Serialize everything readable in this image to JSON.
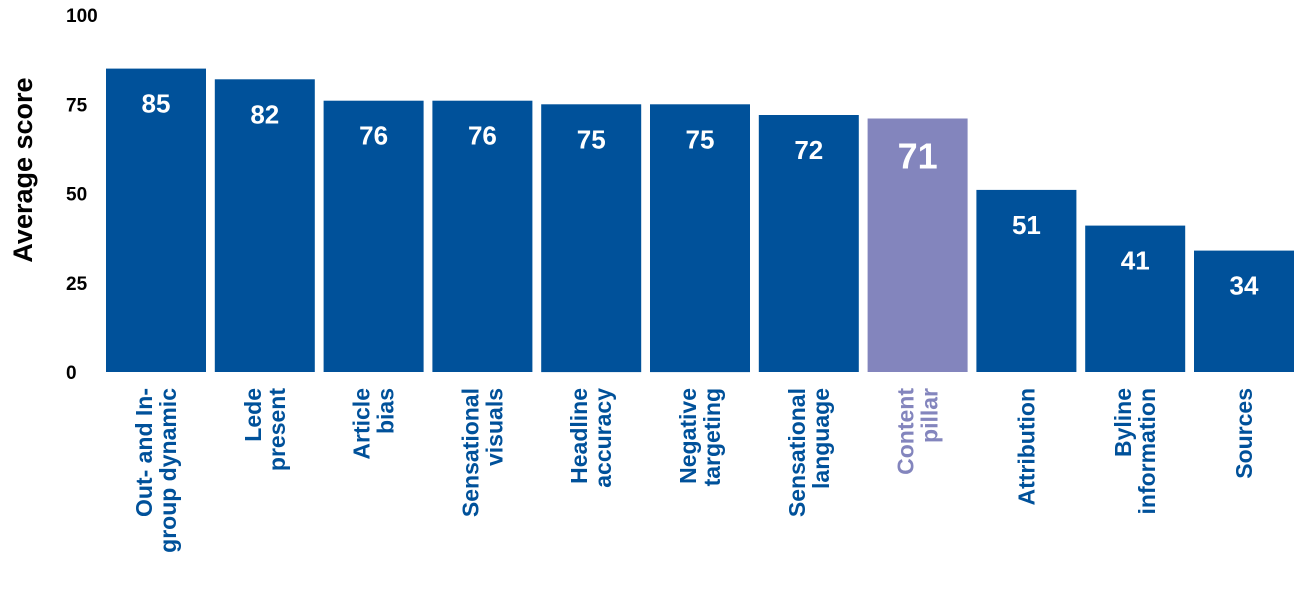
{
  "chart_data": {
    "type": "bar",
    "title": "",
    "xlabel": "",
    "ylabel": "Average score",
    "ylim": [
      0,
      100
    ],
    "yticks": [
      0,
      25,
      50,
      75,
      100
    ],
    "grid": false,
    "categories": [
      [
        "Out- and In-",
        "group dynamic"
      ],
      [
        "Lede",
        "present"
      ],
      [
        "Article",
        "bias"
      ],
      [
        "Sensational",
        "visuals"
      ],
      [
        "Headline",
        "accuracy"
      ],
      [
        "Negative",
        "targeting"
      ],
      [
        "Sensational",
        "language"
      ],
      [
        "Content",
        "pillar"
      ],
      [
        "Attribution"
      ],
      [
        "Byline",
        "information"
      ],
      [
        "Sources"
      ]
    ],
    "values": [
      85,
      82,
      76,
      76,
      75,
      75,
      72,
      71,
      51,
      41,
      34
    ],
    "highlight_index": 7,
    "colors": {
      "bar": "#00519a",
      "highlight": "#8385bd",
      "label_text": "#00519a",
      "highlight_text": "#8385bd",
      "value_text": "#ffffff"
    }
  }
}
